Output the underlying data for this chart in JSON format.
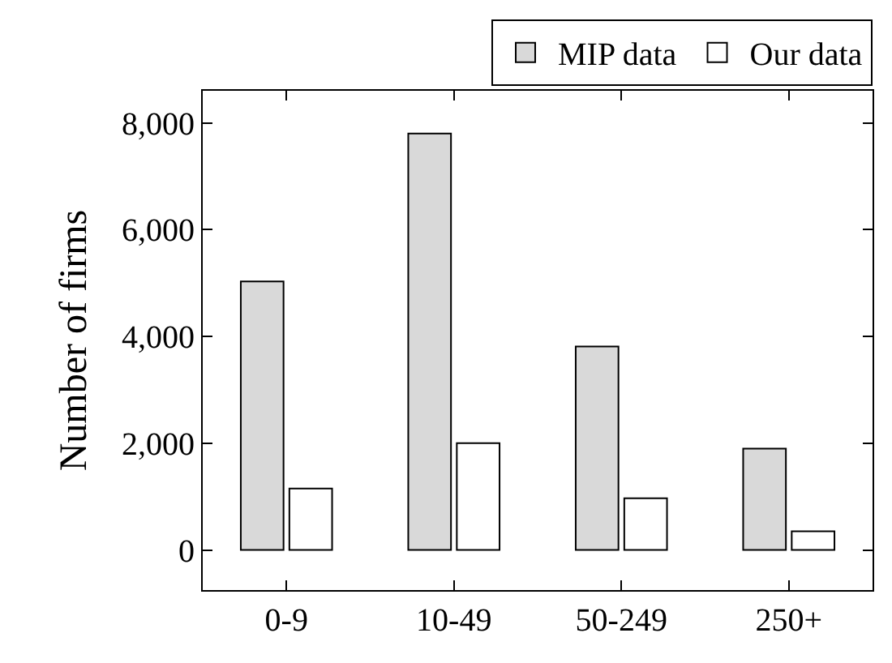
{
  "chart_data": {
    "type": "bar",
    "ylabel": "Number of firms",
    "categories": [
      "0-9",
      "10-49",
      "50-249",
      "250+"
    ],
    "series": [
      {
        "name": "MIP data",
        "color": "#d9d9d9",
        "values": [
          5030,
          7800,
          3810,
          1900
        ]
      },
      {
        "name": "Our data",
        "color": "#ffffff",
        "values": [
          1150,
          2000,
          970,
          350
        ]
      }
    ],
    "ylim": [
      -750,
      8600
    ],
    "yticks": [
      0,
      {
        "value": 2000,
        "label": "2,000"
      },
      {
        "value": 4000,
        "label": "4,000"
      },
      {
        "value": 6000,
        "label": "6,000"
      },
      {
        "value": 8000,
        "label": "8,000"
      }
    ],
    "grid": false,
    "legend": "top right"
  }
}
